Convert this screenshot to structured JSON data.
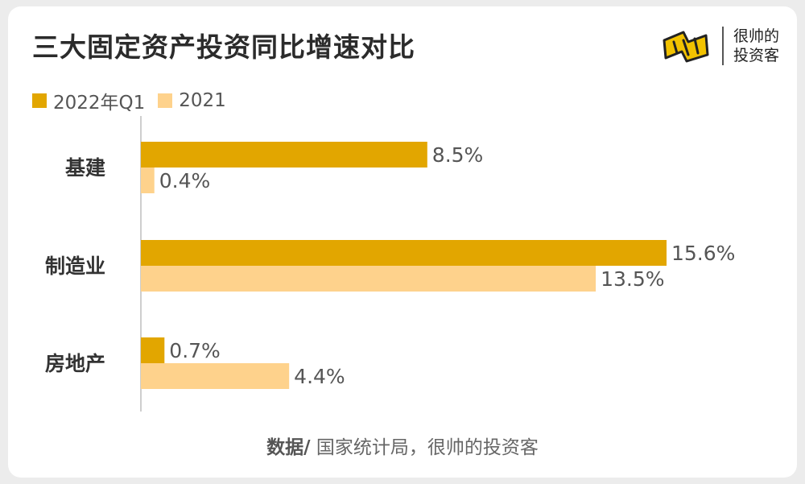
{
  "title": "三大固定资产投资同比增速对比",
  "brand": {
    "line1": "很帅的",
    "line2": "投资客"
  },
  "source": {
    "prefix": "数据/",
    "text": " 国家统计局，很帅的投资客"
  },
  "colors": {
    "series1": "#e2a600",
    "series2": "#fed28c"
  },
  "chart_data": {
    "type": "bar",
    "orientation": "horizontal",
    "categories": [
      "基建",
      "制造业",
      "房地产"
    ],
    "series": [
      {
        "name": "2022年Q1",
        "values": [
          8.5,
          15.6,
          0.7
        ],
        "labels": [
          "8.5%",
          "15.6%",
          "0.7%"
        ]
      },
      {
        "name": "2021",
        "values": [
          0.4,
          13.5,
          4.4
        ],
        "labels": [
          "0.4%",
          "13.5%",
          "4.4%"
        ]
      }
    ],
    "xlim": [
      0,
      15.6
    ],
    "legend_position": "top-left",
    "grid": false
  }
}
